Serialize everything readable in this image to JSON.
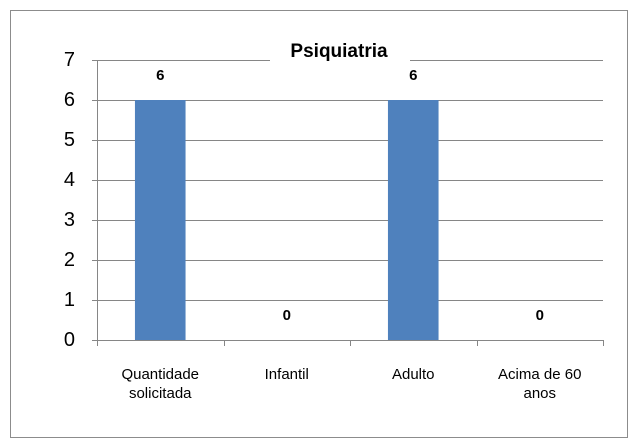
{
  "chart_data": {
    "type": "bar",
    "title": "Psiquiatria",
    "categories": [
      "Quantidade solicitada",
      "Infantil",
      "Adulto",
      "Acima de 60 anos"
    ],
    "values": [
      6,
      0,
      6,
      0
    ],
    "color": "#4f81bd",
    "ylim": [
      0,
      7
    ],
    "yticks": [
      0,
      1,
      2,
      3,
      4,
      5,
      6,
      7
    ],
    "grid": true
  }
}
